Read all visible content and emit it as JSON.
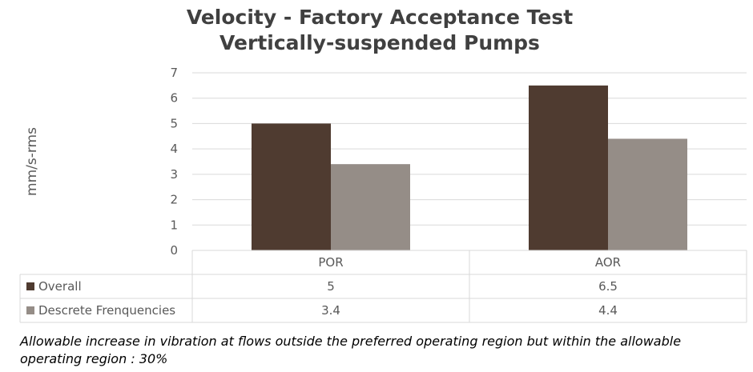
{
  "chart_data": {
    "type": "bar",
    "title": [
      "Velocity - Factory Acceptance Test",
      "Vertically-suspended Pumps"
    ],
    "ylabel": "mm/s-rms",
    "xlabel": "",
    "ylim": [
      0,
      7
    ],
    "yticks": [
      0,
      1,
      2,
      3,
      4,
      5,
      6,
      7
    ],
    "categories": [
      "POR",
      "AOR"
    ],
    "series": [
      {
        "name": "Overall",
        "values": [
          5,
          6.5
        ],
        "display": [
          "5",
          "6.5"
        ],
        "color": "#4f3b30"
      },
      {
        "name": "Descrete Frenquencies",
        "values": [
          3.4,
          4.4
        ],
        "display": [
          "3.4",
          "4.4"
        ],
        "color": "#958d87"
      }
    ],
    "grid": true,
    "legend": "data-table"
  },
  "note": "Allowable increase in vibration at flows outside the preferred operating region but within the allowable operating region : 30%"
}
